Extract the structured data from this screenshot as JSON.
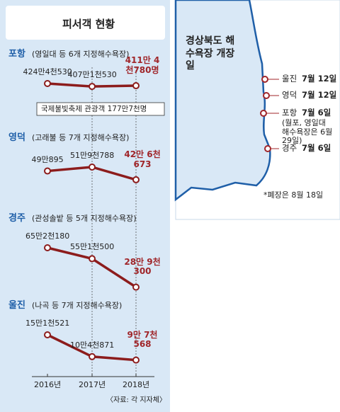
{
  "title": "피서객 현황",
  "source": "〈자료: 각 지자체〉",
  "chart_data": [
    {
      "type": "line",
      "title": "포항",
      "subtitle": "(영일대 등 6개 지정해수욕장)",
      "values": [
        4244530,
        4071530,
        4114780
      ],
      "value_labels": [
        "424만4천530",
        "407만1천530",
        "411만 4천780명"
      ],
      "color": "#8c1c1c",
      "annotation": "국제불빛축제 관광객 177만7천명"
    },
    {
      "type": "line",
      "title": "영덕",
      "subtitle": "(고래불 등 7개 지정해수욕장)",
      "values": [
        490895,
        519788,
        426673
      ],
      "value_labels": [
        "49만895",
        "51만9천788",
        "42만 6천673"
      ],
      "color": "#8c1c1c"
    },
    {
      "type": "line",
      "title": "경주",
      "subtitle": "(관성솔밭 등 5개 지정해수욕장)",
      "values": [
        652180,
        551500,
        289300
      ],
      "value_labels": [
        "65만2천180",
        "55만1천500",
        "28만 9천300"
      ],
      "color": "#8c1c1c"
    },
    {
      "type": "line",
      "title": "울진",
      "subtitle": "(나곡 등 7개 지정해수욕장)",
      "categories": [
        "2016년",
        "2017년",
        "2018년"
      ],
      "values": [
        151521,
        104871,
        97568
      ],
      "value_labels": [
        "15만1천521",
        "10만4천871",
        "9만 7천568"
      ],
      "color": "#8c1c1c"
    }
  ],
  "map": {
    "title": "경상북도 해수욕장 개장일",
    "entries": [
      {
        "place": "울진",
        "date": "7월 12일"
      },
      {
        "place": "영덕",
        "date": "7월 12일"
      },
      {
        "place": "포항",
        "date": "7월 6일",
        "note": "(월포, 영일대 해수욕장은 6월 29일)"
      },
      {
        "place": "경주",
        "date": "7월 6일"
      }
    ],
    "footnote": "*폐장은 8월 18일"
  }
}
